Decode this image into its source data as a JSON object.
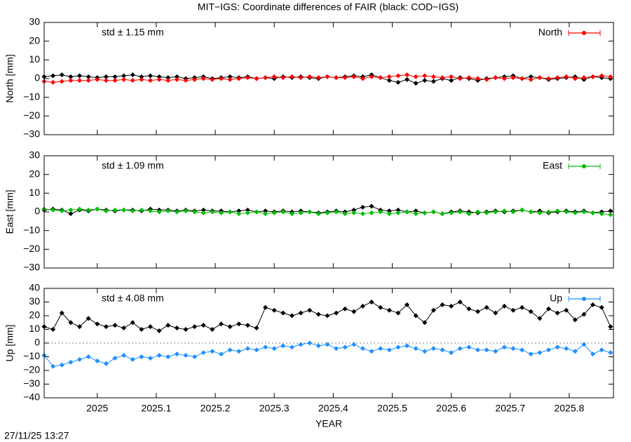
{
  "title": "MIT−IGS: Coordinate differences of FAIR (black: COD−IGS)",
  "footer": "27/11/25 13:27",
  "chart_data": [
    {
      "type": "line",
      "ylabel": "North [mm]",
      "annotation": "std ± 1.15 mm",
      "legend": "top right",
      "xlim": [
        2024.91,
        2025.875
      ],
      "ylim": [
        -30,
        30
      ],
      "xticks": [
        2025,
        2025.1,
        2025.2,
        2025.3,
        2025.4,
        2025.5,
        2025.6,
        2025.7,
        2025.8
      ],
      "yticks": [
        {
          "value": -30,
          "label": "−30"
        },
        {
          "value": -20,
          "label": "−20"
        },
        {
          "value": -10,
          "label": "−10"
        },
        0,
        10,
        20,
        30
      ],
      "x": [
        2024.91,
        2024.925,
        2024.94,
        2024.955,
        2024.97,
        2024.985,
        2025.0,
        2025.015,
        2025.03,
        2025.045,
        2025.06,
        2025.075,
        2025.09,
        2025.105,
        2025.12,
        2025.135,
        2025.15,
        2025.165,
        2025.18,
        2025.195,
        2025.21,
        2025.225,
        2025.24,
        2025.255,
        2025.27,
        2025.285,
        2025.3,
        2025.315,
        2025.33,
        2025.345,
        2025.36,
        2025.375,
        2025.39,
        2025.405,
        2025.42,
        2025.435,
        2025.45,
        2025.465,
        2025.48,
        2025.495,
        2025.51,
        2025.525,
        2025.54,
        2025.555,
        2025.57,
        2025.585,
        2025.6,
        2025.615,
        2025.63,
        2025.645,
        2025.66,
        2025.675,
        2025.69,
        2025.705,
        2025.72,
        2025.735,
        2025.75,
        2025.765,
        2025.78,
        2025.795,
        2025.81,
        2025.825,
        2025.84,
        2025.855,
        2025.87
      ],
      "series": [
        {
          "color": "#000000",
          "values": [
            1,
            1.5,
            2,
            1,
            1.5,
            1,
            0.5,
            1,
            1,
            1.5,
            2,
            1,
            1.5,
            1,
            0.5,
            1,
            0,
            0.5,
            1,
            0,
            0.5,
            1,
            0.5,
            1,
            0,
            0.5,
            0,
            1,
            0.5,
            1,
            0.5,
            0,
            1,
            0.5,
            1,
            1.5,
            1,
            2,
            0.5,
            -1,
            -2,
            -0.5,
            -2.5,
            -1,
            -1.5,
            0,
            -1,
            0.5,
            0,
            -1,
            0,
            0.5,
            1,
            1.5,
            0,
            1,
            0.5,
            -0.5,
            0,
            0.5,
            1,
            -0.5,
            1,
            0.5,
            0
          ]
        },
        {
          "name": "North",
          "color": "#ff0000",
          "values": [
            -1.5,
            -2,
            -1.5,
            -1,
            -1,
            -1,
            -0.5,
            -1,
            -1,
            -0.5,
            -1,
            -0.5,
            -1,
            -0.5,
            -1,
            -0.5,
            -1,
            -0.5,
            0,
            -0.5,
            0,
            -0.5,
            0,
            0.5,
            0,
            0.5,
            1,
            0.5,
            1,
            0.5,
            1,
            0.5,
            1,
            0.5,
            0.5,
            1,
            0,
            1,
            0.5,
            1,
            1.5,
            2,
            1,
            1.5,
            1,
            0.5,
            1,
            0,
            0.5,
            0,
            -0.5,
            0.5,
            0,
            0.5,
            0,
            -0.5,
            0.5,
            0,
            0.5,
            1,
            0,
            0.5,
            1,
            1.5,
            1
          ]
        }
      ]
    },
    {
      "type": "line",
      "ylabel": "East [mm]",
      "annotation": "std ± 1.09 mm",
      "legend": "top right",
      "xlim": [
        2024.91,
        2025.875
      ],
      "ylim": [
        -30,
        30
      ],
      "xticks": [
        2025,
        2025.1,
        2025.2,
        2025.3,
        2025.4,
        2025.5,
        2025.6,
        2025.7,
        2025.8
      ],
      "yticks": [
        {
          "value": -30,
          "label": "−30"
        },
        {
          "value": -20,
          "label": "−20"
        },
        {
          "value": -10,
          "label": "−10"
        },
        0,
        10,
        20,
        30
      ],
      "x": [
        2024.91,
        2024.925,
        2024.94,
        2024.955,
        2024.97,
        2024.985,
        2025.0,
        2025.015,
        2025.03,
        2025.045,
        2025.06,
        2025.075,
        2025.09,
        2025.105,
        2025.12,
        2025.135,
        2025.15,
        2025.165,
        2025.18,
        2025.195,
        2025.21,
        2025.225,
        2025.24,
        2025.255,
        2025.27,
        2025.285,
        2025.3,
        2025.315,
        2025.33,
        2025.345,
        2025.36,
        2025.375,
        2025.39,
        2025.405,
        2025.42,
        2025.435,
        2025.45,
        2025.465,
        2025.48,
        2025.495,
        2025.51,
        2025.525,
        2025.54,
        2025.555,
        2025.57,
        2025.585,
        2025.6,
        2025.615,
        2025.63,
        2025.645,
        2025.66,
        2025.675,
        2025.69,
        2025.705,
        2025.72,
        2025.735,
        2025.75,
        2025.765,
        2025.78,
        2025.795,
        2025.81,
        2025.825,
        2025.84,
        2025.855,
        2025.87
      ],
      "series": [
        {
          "color": "#000000",
          "values": [
            1,
            1.5,
            1,
            -1,
            1,
            0.5,
            1.5,
            1,
            0.5,
            1,
            1,
            0.5,
            1.5,
            1,
            1,
            0.5,
            1,
            0.5,
            1,
            0.5,
            0.5,
            0,
            0.5,
            1,
            0,
            0.5,
            0,
            0.5,
            0,
            0.5,
            0,
            -0.5,
            0,
            0.5,
            0,
            1,
            2.5,
            3,
            1,
            0.5,
            1,
            0,
            0.5,
            -0.5,
            0,
            -1,
            0,
            0.5,
            0,
            -0.5,
            0,
            0.5,
            0,
            0.5,
            1,
            0,
            0.5,
            -0.5,
            0,
            0.5,
            0,
            0.5,
            -0.5,
            0,
            0.5
          ]
        },
        {
          "name": "East",
          "color": "#00c000",
          "values": [
            1.5,
            1,
            0.5,
            1,
            1.5,
            1,
            1.5,
            0.5,
            1,
            1,
            0.5,
            1,
            0.5,
            0,
            0.5,
            0,
            0.5,
            0,
            -0.5,
            0,
            -0.5,
            0,
            -1,
            -0.5,
            0,
            -1,
            -0.5,
            0,
            -1,
            -0.5,
            0,
            -1,
            -0.5,
            0,
            -1,
            -0.5,
            -1,
            -0.5,
            0,
            -1,
            -0.5,
            0,
            -1,
            -0.5,
            0,
            -1,
            -0.5,
            0,
            -1,
            0,
            -0.5,
            0,
            0.5,
            0,
            1,
            0,
            -0.5,
            0,
            0.5,
            0,
            -0.5,
            0,
            -0.5,
            -1,
            -1.5
          ]
        }
      ]
    },
    {
      "type": "line",
      "ylabel": "Up [mm]",
      "annotation": "std ± 4.08 mm",
      "legend": "top right",
      "zero_line": true,
      "xlabel": "YEAR",
      "xlim": [
        2024.91,
        2025.875
      ],
      "ylim": [
        -40,
        40
      ],
      "xticks": [
        2025,
        2025.1,
        2025.2,
        2025.3,
        2025.4,
        2025.5,
        2025.6,
        2025.7,
        2025.8
      ],
      "yticks": [
        {
          "value": -40,
          "label": "−40"
        },
        {
          "value": -30,
          "label": "−30"
        },
        {
          "value": -20,
          "label": "−20"
        },
        {
          "value": -10,
          "label": "−10"
        },
        0,
        10,
        20,
        30,
        40
      ],
      "x": [
        2024.91,
        2024.925,
        2024.94,
        2024.955,
        2024.97,
        2024.985,
        2025.0,
        2025.015,
        2025.03,
        2025.045,
        2025.06,
        2025.075,
        2025.09,
        2025.105,
        2025.12,
        2025.135,
        2025.15,
        2025.165,
        2025.18,
        2025.195,
        2025.21,
        2025.225,
        2025.24,
        2025.255,
        2025.27,
        2025.285,
        2025.3,
        2025.315,
        2025.33,
        2025.345,
        2025.36,
        2025.375,
        2025.39,
        2025.405,
        2025.42,
        2025.435,
        2025.45,
        2025.465,
        2025.48,
        2025.495,
        2025.51,
        2025.525,
        2025.54,
        2025.555,
        2025.57,
        2025.585,
        2025.6,
        2025.615,
        2025.63,
        2025.645,
        2025.66,
        2025.675,
        2025.69,
        2025.705,
        2025.72,
        2025.735,
        2025.75,
        2025.765,
        2025.78,
        2025.795,
        2025.81,
        2025.825,
        2025.84,
        2025.855,
        2025.87
      ],
      "series": [
        {
          "color": "#000000",
          "values": [
            12,
            10,
            22,
            15,
            12,
            18,
            14,
            12,
            13,
            11,
            15,
            10,
            12,
            9,
            13,
            11,
            10,
            12,
            13,
            10,
            14,
            12,
            14,
            13,
            11,
            26,
            24,
            22,
            20,
            22,
            24,
            21,
            20,
            22,
            25,
            23,
            27,
            30,
            26,
            24,
            22,
            28,
            20,
            15,
            24,
            28,
            27,
            30,
            25,
            23,
            26,
            22,
            27,
            24,
            26,
            23,
            18,
            25,
            22,
            24,
            17,
            21,
            28,
            26,
            12
          ]
        },
        {
          "name": "Up",
          "color": "#1e90ff",
          "values": [
            -9,
            -17,
            -16,
            -14,
            -12,
            -10,
            -13,
            -15,
            -11,
            -9,
            -12,
            -10,
            -11,
            -9,
            -10,
            -8,
            -9,
            -10,
            -7,
            -6,
            -8,
            -5,
            -6,
            -4,
            -5,
            -3,
            -4,
            -2,
            -3,
            -1,
            0,
            -2,
            -1,
            -4,
            -3,
            -1,
            -4,
            -6,
            -4,
            -5,
            -3,
            -2,
            -4,
            -6,
            -4,
            -5,
            -7,
            -4,
            -3,
            -5,
            -5,
            -6,
            -3,
            -4,
            -5,
            -8,
            -7,
            -5,
            -3,
            -4,
            -6,
            -1,
            -8,
            -5,
            -7
          ]
        }
      ]
    }
  ]
}
